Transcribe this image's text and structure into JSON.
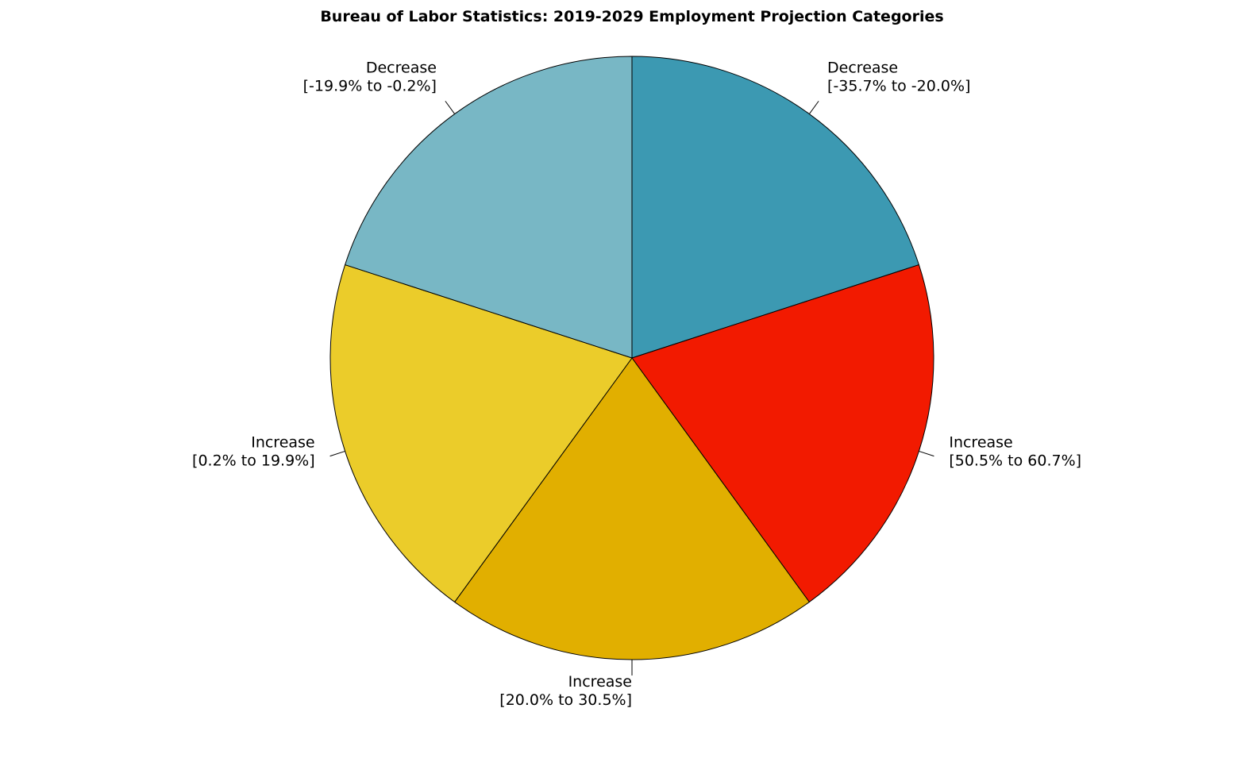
{
  "chart_data": {
    "type": "pie",
    "title": "Bureau of Labor Statistics: 2019-2029 Employment Projection Categories",
    "start_angle_deg": 90,
    "direction": "clockwise",
    "slices": [
      {
        "label": "Decrease",
        "range": "[-35.7% to -20.0%]",
        "value": 20,
        "color": "#3C99B2"
      },
      {
        "label": "Increase",
        "range": "[50.5% to 60.7%]",
        "value": 20,
        "color": "#F21A00"
      },
      {
        "label": "Increase",
        "range": "[20.0% to 30.5%]",
        "value": 20,
        "color": "#E1AF00"
      },
      {
        "label": "Increase",
        "range": "[0.2% to 19.9%]",
        "value": 20,
        "color": "#EBCC2A"
      },
      {
        "label": "Decrease",
        "range": "[-19.9% to -0.2%]",
        "value": 20,
        "color": "#78B7C5"
      }
    ]
  }
}
